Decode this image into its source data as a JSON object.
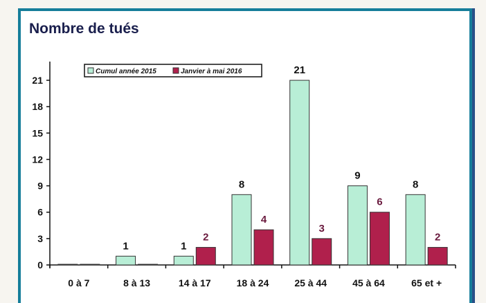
{
  "chart_data": {
    "type": "bar",
    "title": "Nombre de tués",
    "categories": [
      "0 à 7",
      "8 à 13",
      "14 à 17",
      "18 à 24",
      "25 à 44",
      "45 à 64",
      "65 et +"
    ],
    "series": [
      {
        "name": "Cumul année 2015",
        "values": [
          0,
          1,
          1,
          8,
          21,
          9,
          8
        ],
        "labels": [
          "",
          "1",
          "1",
          "8",
          "21",
          "9",
          "8"
        ],
        "color": "#b8eed6",
        "label_color": "#111111"
      },
      {
        "name": "Janvier à mai 2016",
        "values": [
          0,
          0,
          2,
          4,
          3,
          6,
          2
        ],
        "labels": [
          "",
          "",
          "2",
          "4",
          "3",
          "6",
          "2"
        ],
        "color": "#b0204c",
        "label_color": "#6a1a3e"
      }
    ],
    "yticks": [
      0,
      3,
      6,
      9,
      12,
      15,
      18,
      21
    ],
    "ylim": [
      0,
      22.5
    ],
    "grid": false,
    "legend_position": "top-left"
  }
}
